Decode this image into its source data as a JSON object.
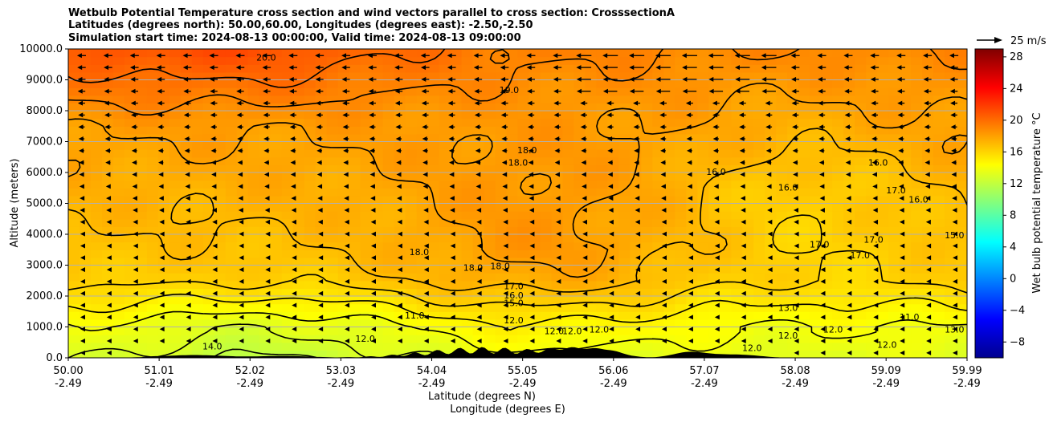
{
  "title_lines": [
    "Wetbulb Potential Temperature cross section and wind vectors parallel to cross section: CrosssectionA",
    "Latitudes (degrees north): 50.00,60.00, Longitudes (degrees east): -2.50,-2.50",
    "Simulation start time: 2024-08-13 00:00:00, Valid time: 2024-08-13 09:00:00"
  ],
  "chart_data": {
    "type": "heatmap",
    "title": "Wetbulb Potential Temperature cross section and wind vectors parallel to cross section: CrosssectionA",
    "ylabel": "Altitude (meters)",
    "xlabel_lines": [
      "Latitude (degrees N)",
      "Longitude (degrees E)"
    ],
    "ylim": [
      0,
      10000
    ],
    "xlim": [
      50.0,
      59.99
    ],
    "yticks": [
      "0.0",
      "1000.0",
      "2000.0",
      "3000.0",
      "4000.0",
      "5000.0",
      "6000.0",
      "7000.0",
      "8000.0",
      "9000.0",
      "10000.0"
    ],
    "xticks": [
      {
        "lat": "50.00",
        "lon": "-2.49"
      },
      {
        "lat": "51.01",
        "lon": "-2.49"
      },
      {
        "lat": "52.02",
        "lon": "-2.49"
      },
      {
        "lat": "53.03",
        "lon": "-2.49"
      },
      {
        "lat": "54.04",
        "lon": "-2.49"
      },
      {
        "lat": "55.05",
        "lon": "-2.49"
      },
      {
        "lat": "56.06",
        "lon": "-2.49"
      },
      {
        "lat": "57.07",
        "lon": "-2.49"
      },
      {
        "lat": "58.08",
        "lon": "-2.49"
      },
      {
        "lat": "59.09",
        "lon": "-2.49"
      },
      {
        "lat": "59.99",
        "lon": "-2.49"
      }
    ],
    "grid": "horizontal lines at y ticks",
    "colorbar": {
      "label": "Wet bulb potential temperature °C",
      "ticks": [
        28,
        24,
        20,
        16,
        12,
        8,
        4,
        0,
        -4,
        -8
      ],
      "range": [
        -10,
        29
      ],
      "colormap": "jet"
    },
    "quiver_key": {
      "label": "25 m/s"
    },
    "contour_labels": [
      {
        "text": "20.0",
        "lat": 52.2,
        "alt": 9700
      },
      {
        "text": "19.0",
        "lat": 54.9,
        "alt": 8650
      },
      {
        "text": "18.0",
        "lat": 55.1,
        "alt": 6700
      },
      {
        "text": "18.0",
        "lat": 55.0,
        "alt": 6300
      },
      {
        "text": "16.0",
        "lat": 57.2,
        "alt": 6000
      },
      {
        "text": "16.0",
        "lat": 58.0,
        "alt": 5500
      },
      {
        "text": "16.0",
        "lat": 59.0,
        "alt": 6300
      },
      {
        "text": "17.0",
        "lat": 59.2,
        "alt": 5400
      },
      {
        "text": "16.0",
        "lat": 59.45,
        "alt": 5100
      },
      {
        "text": "17.0",
        "lat": 58.35,
        "alt": 3650
      },
      {
        "text": "17.0",
        "lat": 58.8,
        "alt": 3300
      },
      {
        "text": "17.0",
        "lat": 58.95,
        "alt": 3800
      },
      {
        "text": "15.0",
        "lat": 59.85,
        "alt": 3950
      },
      {
        "text": "18.0",
        "lat": 53.9,
        "alt": 3400
      },
      {
        "text": "18.0",
        "lat": 54.5,
        "alt": 2900
      },
      {
        "text": "18.0",
        "lat": 54.8,
        "alt": 2950
      },
      {
        "text": "17.0",
        "lat": 54.95,
        "alt": 2300
      },
      {
        "text": "16.0",
        "lat": 54.95,
        "alt": 2000
      },
      {
        "text": "15.0",
        "lat": 54.95,
        "alt": 1750
      },
      {
        "text": "11.0",
        "lat": 53.85,
        "alt": 1350
      },
      {
        "text": "12.0",
        "lat": 54.95,
        "alt": 1200
      },
      {
        "text": "12.0",
        "lat": 55.4,
        "alt": 850
      },
      {
        "text": "12.0",
        "lat": 55.6,
        "alt": 850
      },
      {
        "text": "12.0",
        "lat": 55.9,
        "alt": 900
      },
      {
        "text": "12.0",
        "lat": 53.3,
        "alt": 600
      },
      {
        "text": "14.0",
        "lat": 51.6,
        "alt": 350
      },
      {
        "text": "13.0",
        "lat": 58.0,
        "alt": 1600
      },
      {
        "text": "12.0",
        "lat": 58.5,
        "alt": 900
      },
      {
        "text": "12.0",
        "lat": 58.0,
        "alt": 700
      },
      {
        "text": "12.0",
        "lat": 57.6,
        "alt": 300
      },
      {
        "text": "12.0",
        "lat": 59.1,
        "alt": 400
      },
      {
        "text": "11.0",
        "lat": 59.35,
        "alt": 1300
      },
      {
        "text": "13.0",
        "lat": 59.85,
        "alt": 900
      }
    ]
  },
  "colors": {
    "colormap": [
      "#00008f",
      "#0000ff",
      "#0080ff",
      "#00ffff",
      "#80ff80",
      "#ffff00",
      "#ff8000",
      "#ff0000",
      "#800000"
    ],
    "contour": "#000000",
    "arrows": "#000000",
    "terrain": "#000000"
  }
}
